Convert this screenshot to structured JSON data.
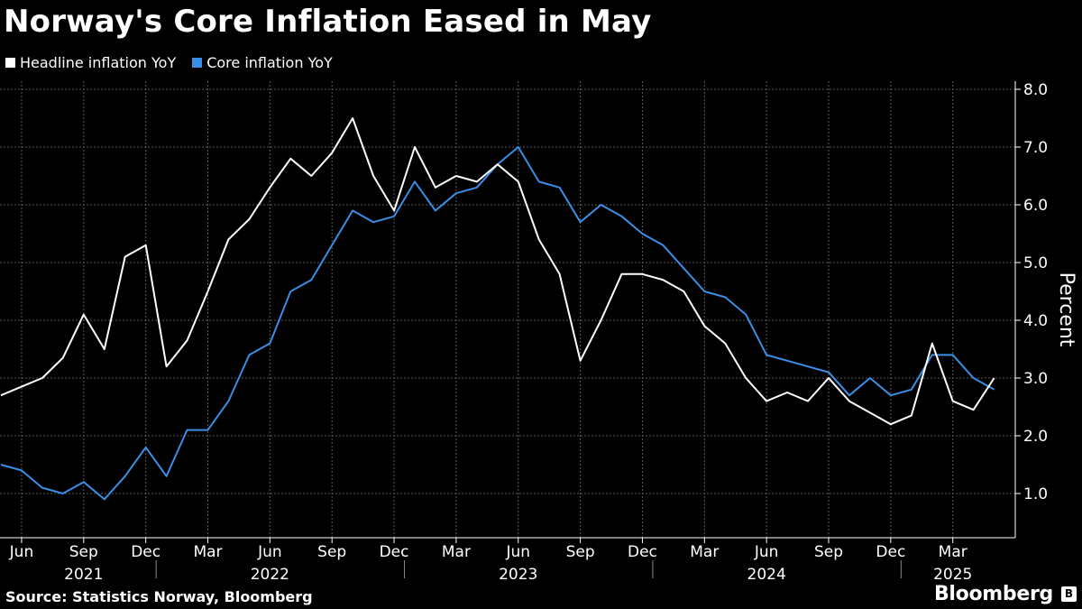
{
  "title": "Norway's Core Inflation Eased in May",
  "source": "Source: Statistics Norway, Bloomberg",
  "brand": "Bloomberg",
  "chart_data": {
    "type": "line",
    "title": "Norway's Core Inflation Eased in May",
    "ylabel": "Percent",
    "ylim": [
      0.2,
      8.2
    ],
    "yticks": [
      "1.0",
      "2.0",
      "3.0",
      "4.0",
      "5.0",
      "6.0",
      "7.0",
      "8.0"
    ],
    "ytick_values": [
      1,
      2,
      3,
      4,
      5,
      6,
      7,
      8
    ],
    "grid": true,
    "legend_position": "top-left",
    "x": [
      "2021-05",
      "2021-06",
      "2021-07",
      "2021-08",
      "2021-09",
      "2021-10",
      "2021-11",
      "2021-12",
      "2022-01",
      "2022-02",
      "2022-03",
      "2022-04",
      "2022-05",
      "2022-06",
      "2022-07",
      "2022-08",
      "2022-09",
      "2022-10",
      "2022-11",
      "2022-12",
      "2023-01",
      "2023-02",
      "2023-03",
      "2023-04",
      "2023-05",
      "2023-06",
      "2023-07",
      "2023-08",
      "2023-09",
      "2023-10",
      "2023-11",
      "2023-12",
      "2024-01",
      "2024-02",
      "2024-03",
      "2024-04",
      "2024-05",
      "2024-06",
      "2024-07",
      "2024-08",
      "2024-09",
      "2024-10",
      "2024-11",
      "2024-12",
      "2025-01",
      "2025-02",
      "2025-03",
      "2025-04",
      "2025-05"
    ],
    "x_tick_labels": [
      {
        "label": "Jun",
        "x": "2021-06"
      },
      {
        "label": "Sep",
        "x": "2021-09"
      },
      {
        "label": "Dec",
        "x": "2021-12"
      },
      {
        "label": "Mar",
        "x": "2022-03"
      },
      {
        "label": "Jun",
        "x": "2022-06"
      },
      {
        "label": "Sep",
        "x": "2022-09"
      },
      {
        "label": "Dec",
        "x": "2022-12"
      },
      {
        "label": "Mar",
        "x": "2023-03"
      },
      {
        "label": "Jun",
        "x": "2023-06"
      },
      {
        "label": "Sep",
        "x": "2023-09"
      },
      {
        "label": "Dec",
        "x": "2023-12"
      },
      {
        "label": "Mar",
        "x": "2024-03"
      },
      {
        "label": "Jun",
        "x": "2024-06"
      },
      {
        "label": "Sep",
        "x": "2024-09"
      },
      {
        "label": "Dec",
        "x": "2024-12"
      },
      {
        "label": "Mar",
        "x": "2025-03"
      }
    ],
    "year_labels": [
      {
        "label": "2021",
        "x": "2021-09"
      },
      {
        "label": "2022",
        "x": "2022-06"
      },
      {
        "label": "2023",
        "x": "2023-06"
      },
      {
        "label": "2024",
        "x": "2024-06"
      },
      {
        "label": "2025",
        "x": "2025-03"
      }
    ],
    "year_boundaries": [
      "2021-12",
      "2022-12",
      "2023-12",
      "2024-12"
    ],
    "series": [
      {
        "name": "Headline inflation YoY",
        "color": "#ffffff",
        "values": [
          2.7,
          2.85,
          3.0,
          3.35,
          4.1,
          3.5,
          5.1,
          5.3,
          3.2,
          3.65,
          4.5,
          5.4,
          5.75,
          6.3,
          6.8,
          6.5,
          6.9,
          7.5,
          6.5,
          5.9,
          7.0,
          6.3,
          6.5,
          6.4,
          6.7,
          6.4,
          5.4,
          4.8,
          3.3,
          4.0,
          4.8,
          4.8,
          4.7,
          4.5,
          3.9,
          3.6,
          3.0,
          2.6,
          2.75,
          2.6,
          3.0,
          2.6,
          2.4,
          2.2,
          2.35,
          3.6,
          2.6,
          2.45,
          3.0
        ]
      },
      {
        "name": "Core inflation YoY",
        "color": "#3a8ee6",
        "values": [
          1.5,
          1.4,
          1.1,
          1.0,
          1.2,
          0.9,
          1.3,
          1.8,
          1.3,
          2.1,
          2.1,
          2.6,
          3.4,
          3.6,
          4.5,
          4.7,
          5.3,
          5.9,
          5.7,
          5.8,
          6.4,
          5.9,
          6.2,
          6.3,
          6.7,
          7.0,
          6.4,
          6.3,
          5.7,
          6.0,
          5.8,
          5.5,
          5.3,
          4.9,
          4.5,
          4.4,
          4.1,
          3.4,
          3.3,
          3.2,
          3.1,
          2.7,
          3.0,
          2.7,
          2.8,
          3.4,
          3.4,
          3.0,
          2.8
        ]
      }
    ]
  }
}
